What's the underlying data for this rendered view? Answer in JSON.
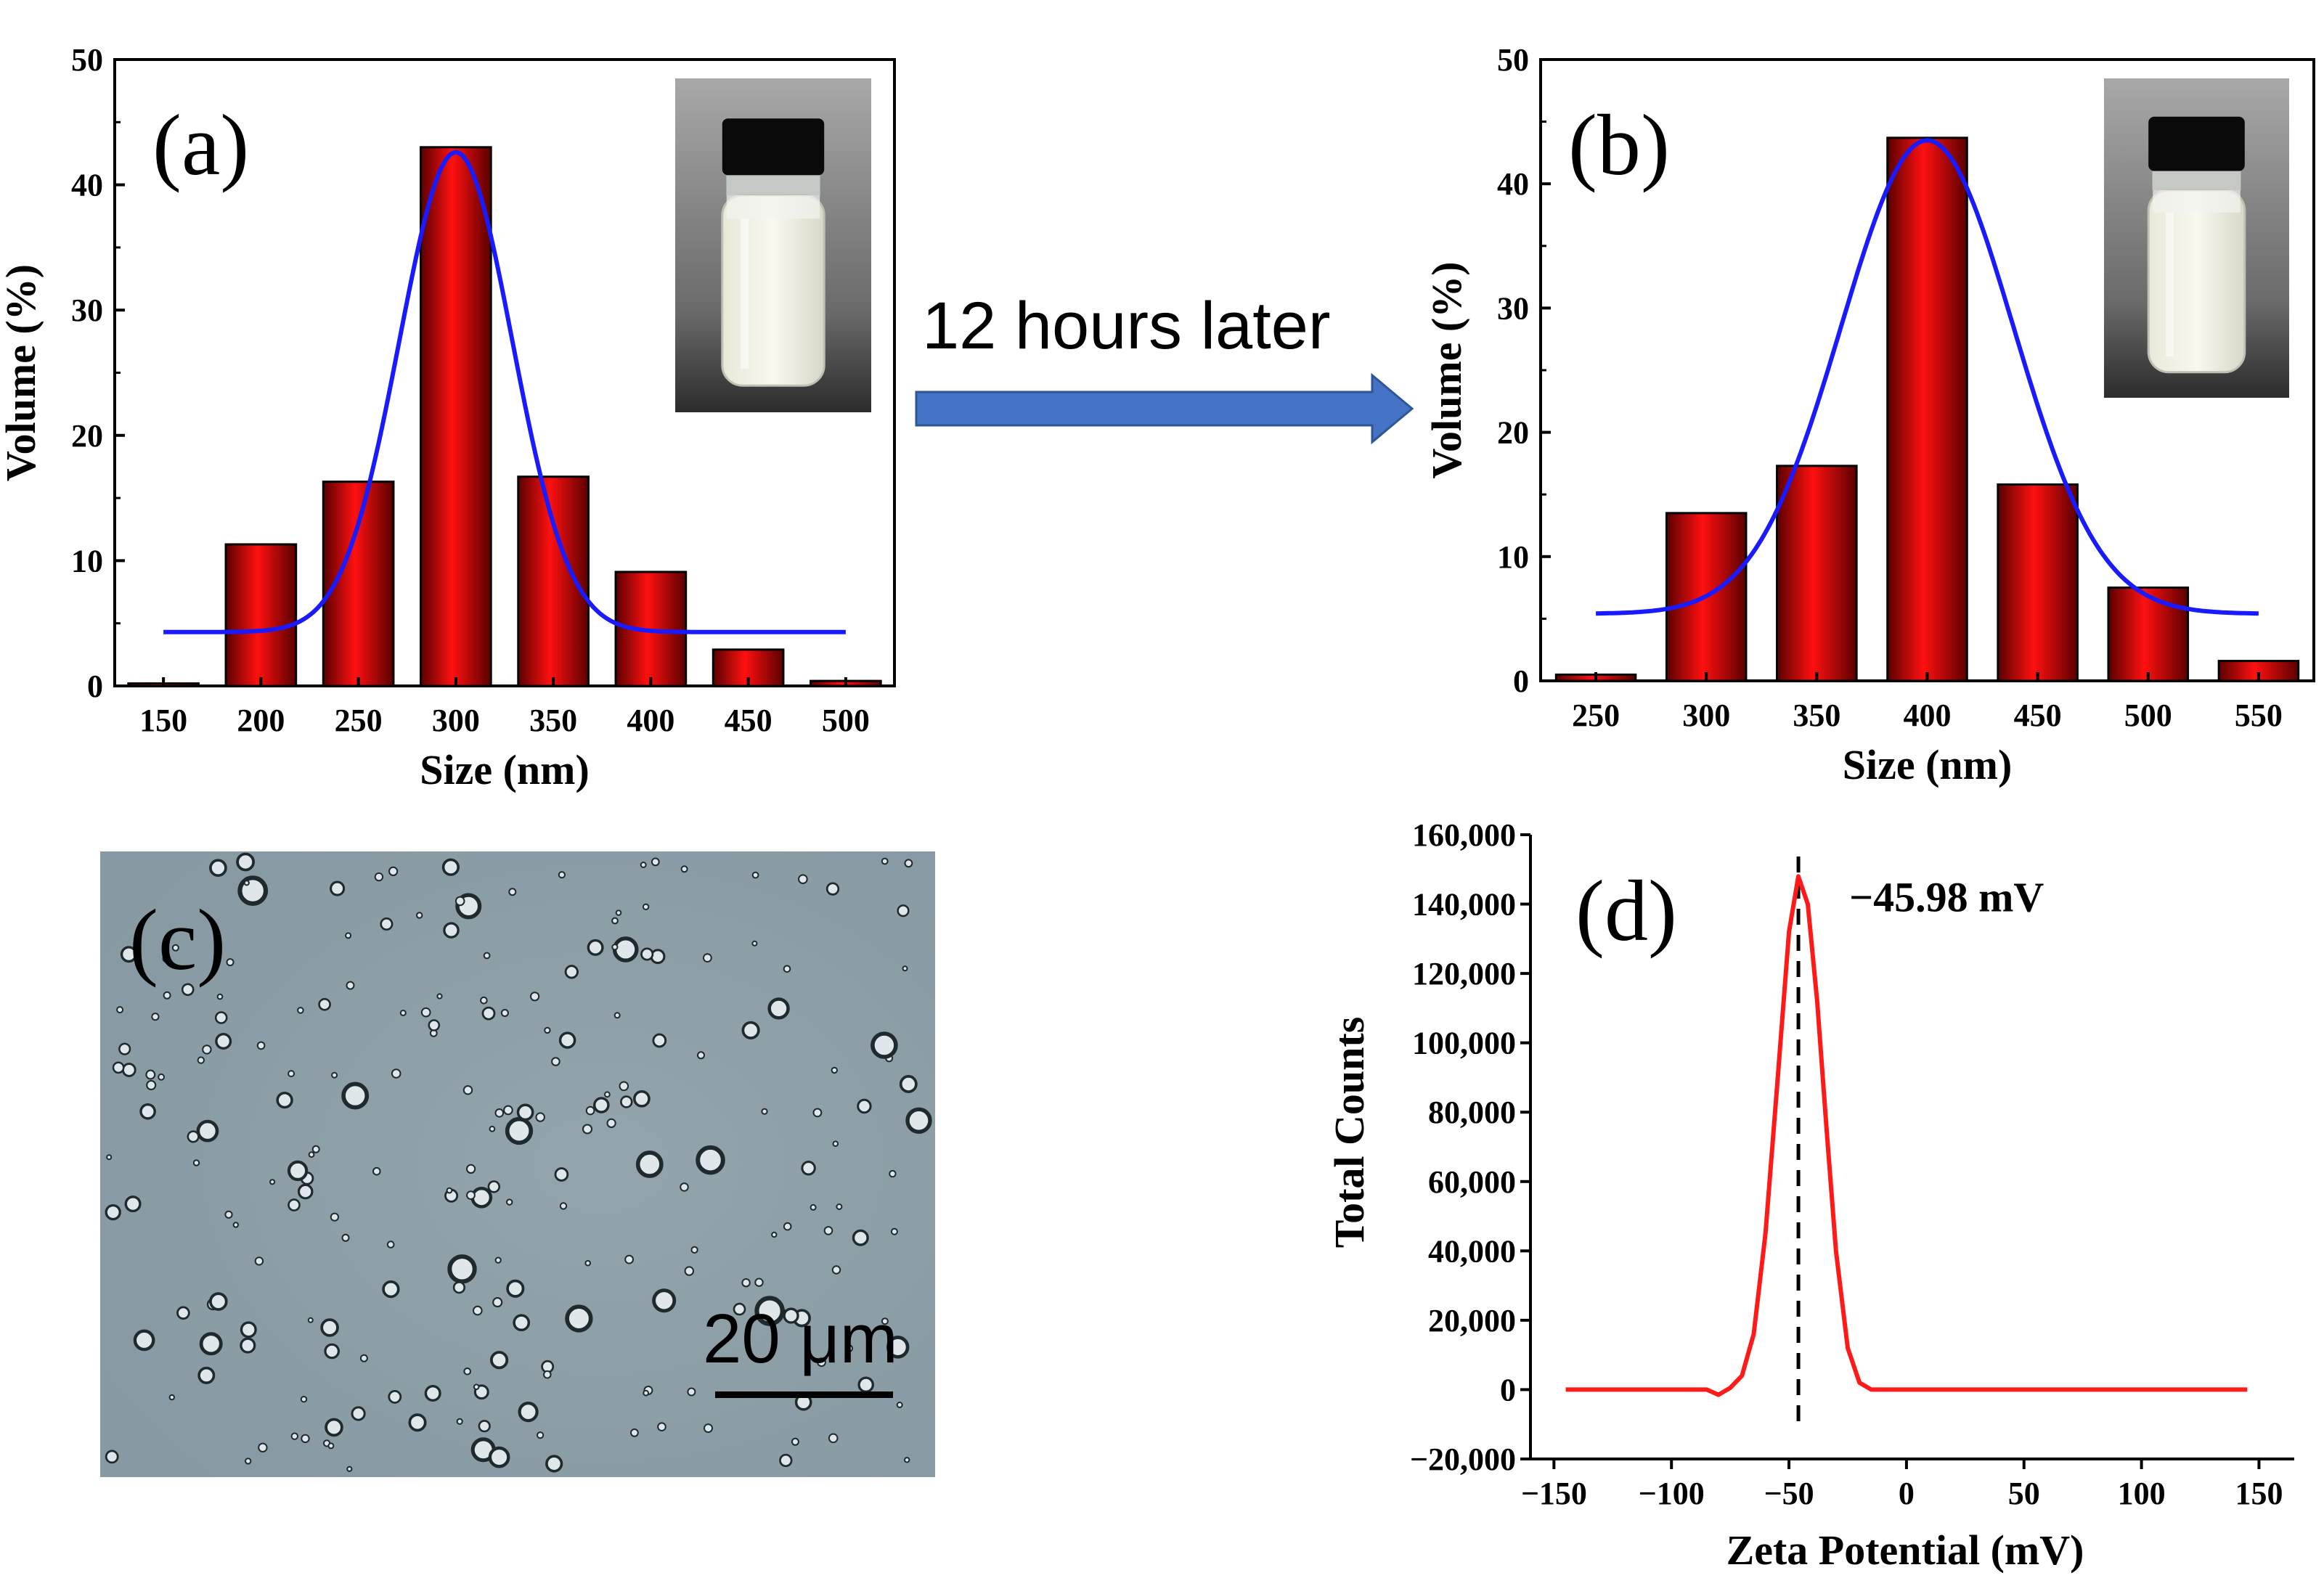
{
  "figure": {
    "arrow_text": "12 hours later",
    "scale_bar_text": "20 μm",
    "colors": {
      "bar": "#e00000",
      "fit": "#1a1aff",
      "zeta": "#ff1a1a",
      "arrow": "#4472c4",
      "micro_bg": "#8fa0a8"
    }
  },
  "panel_labels": {
    "a": "(a)",
    "b": "(b)",
    "c": "(c)",
    "d": "(d)"
  },
  "chart_data": [
    {
      "id": "a",
      "type": "bar",
      "categories": [
        "150",
        "200",
        "250",
        "300",
        "350",
        "400",
        "450",
        "500"
      ],
      "values": [
        0.2,
        11.3,
        16.3,
        43.0,
        16.7,
        9.1,
        2.9,
        0.4
      ],
      "fit": {
        "type": "gaussian",
        "baseline": 4.3,
        "peak": 42.6,
        "center": 300,
        "sigma": 29,
        "xrange": [
          150,
          500
        ]
      },
      "xlabel": "Size (nm)",
      "ylabel": "Volume (%)",
      "ylim": [
        0,
        50
      ],
      "yticks": [
        0,
        10,
        20,
        30,
        40,
        50
      ],
      "inset": "photo of vial with milky emulsion"
    },
    {
      "id": "b",
      "type": "bar",
      "categories": [
        "250",
        "300",
        "350",
        "400",
        "450",
        "500",
        "550"
      ],
      "values": [
        0.5,
        13.5,
        17.3,
        43.7,
        15.8,
        7.5,
        1.6
      ],
      "fit": {
        "type": "gaussian",
        "baseline": 5.4,
        "peak": 43.5,
        "center": 400,
        "sigma": 39,
        "xrange": [
          250,
          550
        ]
      },
      "xlabel": "Size (nm)",
      "ylabel": "Volume (%)",
      "ylim": [
        0,
        50
      ],
      "yticks": [
        0,
        10,
        20,
        30,
        40,
        50
      ],
      "inset": "photo of vial with milky emulsion"
    },
    {
      "id": "d",
      "type": "line",
      "xlabel": "Zeta Potential (mV)",
      "ylabel": "Total Counts",
      "xlim": [
        -160,
        165
      ],
      "ylim": [
        -20000,
        160000
      ],
      "xticks": [
        -150,
        -100,
        -50,
        0,
        50,
        100,
        150
      ],
      "xtick_labels": [
        "−150",
        "−100",
        "−50",
        "0",
        "50",
        "100",
        "150"
      ],
      "yticks": [
        -20000,
        0,
        20000,
        40000,
        60000,
        80000,
        100000,
        120000,
        140000,
        160000
      ],
      "ytick_labels": [
        "−20,000",
        "0",
        "20,000",
        "40,000",
        "60,000",
        "80,000",
        "100,000",
        "120,000",
        "140,000",
        "160,000"
      ],
      "series": [
        {
          "name": "zeta",
          "x": [
            -145,
            -85,
            -80,
            -75,
            -70,
            -65,
            -60,
            -55,
            -50,
            -46,
            -42,
            -38,
            -34,
            -30,
            -25,
            -20,
            -15,
            -10,
            0,
            50,
            100,
            145
          ],
          "y": [
            0,
            0,
            -1500,
            500,
            4000,
            16000,
            45000,
            88000,
            132000,
            148000,
            140000,
            112000,
            75000,
            40000,
            12000,
            2000,
            0,
            0,
            0,
            0,
            0,
            0
          ]
        }
      ],
      "annotation": {
        "x": -45.98,
        "text": "−45.98 mV"
      }
    }
  ]
}
